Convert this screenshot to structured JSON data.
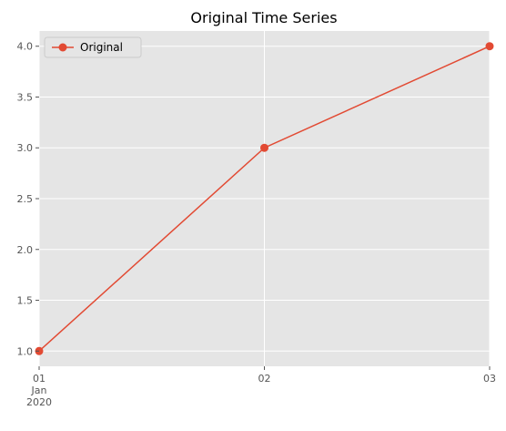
{
  "chart_data": {
    "type": "line",
    "title": "Original Time Series",
    "xlabel": "",
    "ylabel": "",
    "x": [
      "2020-01-01",
      "2020-01-02",
      "2020-01-03"
    ],
    "x_tick_labels": [
      {
        "day": "01",
        "month": "Jan",
        "year": "2020"
      },
      {
        "day": "02",
        "month": "",
        "year": ""
      },
      {
        "day": "03",
        "month": "",
        "year": ""
      }
    ],
    "series": [
      {
        "name": "Original",
        "values": [
          1.0,
          3.0,
          4.0
        ],
        "color": "#E24A33",
        "marker": "circle"
      }
    ],
    "ylim": [
      0.85,
      4.15
    ],
    "y_ticks": [
      1.0,
      1.5,
      2.0,
      2.5,
      3.0,
      3.5,
      4.0
    ],
    "y_tick_labels": [
      "1.0",
      "1.5",
      "2.0",
      "2.5",
      "3.0",
      "3.5",
      "4.0"
    ],
    "grid": true,
    "legend": "upper-left",
    "style": {
      "axes_background": "#E5E5E5",
      "grid_color": "#FFFFFF",
      "tick_color": "#555555",
      "text_color": "#000000"
    }
  }
}
